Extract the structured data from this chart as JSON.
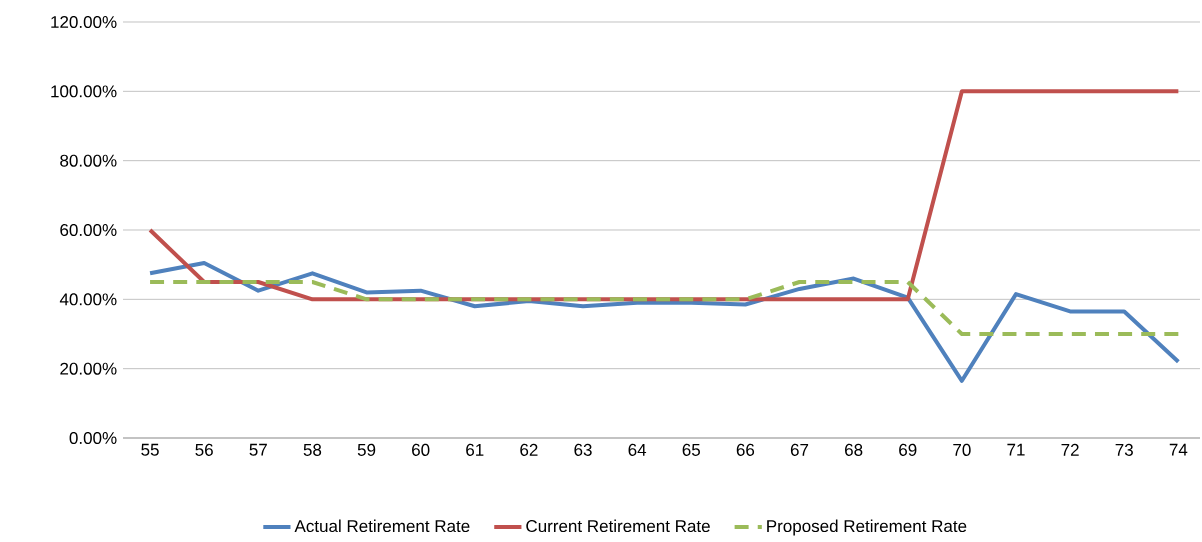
{
  "chart_data": {
    "type": "line",
    "categories": [
      "55",
      "56",
      "57",
      "58",
      "59",
      "60",
      "61",
      "62",
      "63",
      "64",
      "65",
      "66",
      "67",
      "68",
      "69",
      "70",
      "71",
      "72",
      "73",
      "74"
    ],
    "series": [
      {
        "name": "Actual Retirement Rate",
        "color": "#4f81bd",
        "line_style": "solid",
        "values": [
          47.5,
          50.5,
          42.5,
          47.5,
          42,
          42.5,
          38,
          39.5,
          38,
          39,
          39,
          38.5,
          43,
          46,
          40.5,
          16.5,
          41.5,
          36.5,
          36.5,
          22
        ]
      },
      {
        "name": "Current Retirement Rate",
        "color": "#c0504d",
        "line_style": "solid",
        "values": [
          60,
          45,
          45,
          40,
          40,
          40,
          40,
          40,
          40,
          40,
          40,
          40,
          40,
          40,
          40,
          100,
          100,
          100,
          100,
          100
        ]
      },
      {
        "name": "Proposed Retirement Rate",
        "color": "#9bbb59",
        "line_style": "dashed",
        "values": [
          45,
          45,
          45,
          45,
          40,
          40,
          40,
          40,
          40,
          40,
          40,
          40,
          45,
          45,
          45,
          30,
          30,
          30,
          30,
          30
        ]
      }
    ],
    "ylim": [
      0,
      120
    ],
    "yticks": [
      {
        "value": 0,
        "label": "0.00%"
      },
      {
        "value": 20,
        "label": "20.00%"
      },
      {
        "value": 40,
        "label": "40.00%"
      },
      {
        "value": 60,
        "label": "60.00%"
      },
      {
        "value": 80,
        "label": "80.00%"
      },
      {
        "value": 100,
        "label": "100.00%"
      },
      {
        "value": 120,
        "label": "120.00%"
      }
    ],
    "grid": "y",
    "legend": "bottom",
    "marker": "none"
  }
}
